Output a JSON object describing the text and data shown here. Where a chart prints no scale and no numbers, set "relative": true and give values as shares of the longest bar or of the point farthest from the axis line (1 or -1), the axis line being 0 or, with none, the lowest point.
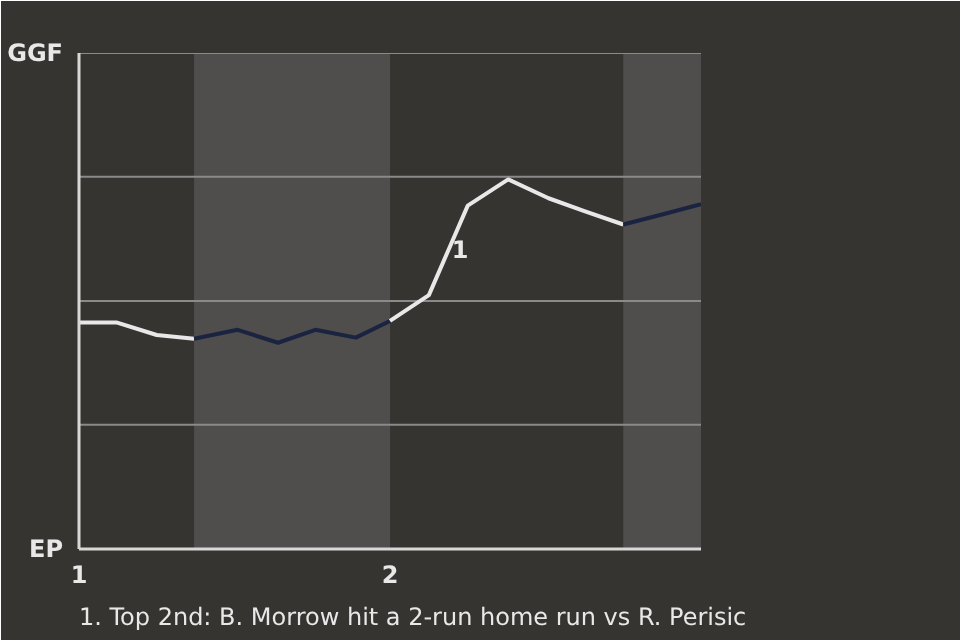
{
  "chart_data": {
    "type": "line",
    "relative": true,
    "xlim": [
      1,
      3
    ],
    "xticks": [
      1,
      2
    ],
    "marker": "none",
    "line_style": "solid",
    "ref_lines": [
      {
        "axis": "y",
        "value": 0.336,
        "label": null,
        "color": "#8a8a8a"
      },
      {
        "axis": "y",
        "value": 0.671,
        "label": null,
        "color": "#8a8a8a"
      },
      {
        "axis": "y",
        "value": 1.007,
        "label": null,
        "color": "#8a8a8a"
      },
      {
        "axis": "y",
        "value": 1.342,
        "label": null,
        "color": "#8a8a8a"
      }
    ],
    "series": [
      {
        "color": "#e8e8e8",
        "x": [
          1.0,
          1.12,
          1.25,
          1.37
        ],
        "values": [
          0.613,
          0.613,
          0.579,
          0.569
        ]
      },
      {
        "color": "#1a2340",
        "x": [
          1.37,
          1.51,
          1.64,
          1.76,
          1.89,
          2.0
        ],
        "values": [
          0.569,
          0.593,
          0.558,
          0.593,
          0.572,
          0.617
        ]
      },
      {
        "color": "#e8e8e8",
        "x": [
          2.0,
          2.125,
          2.25,
          2.38,
          2.51,
          2.625,
          2.75
        ],
        "values": [
          0.617,
          0.687,
          0.929,
          1.0,
          0.949,
          0.914,
          0.878
        ]
      },
      {
        "color": "#1a2340",
        "x": [
          2.75,
          2.875,
          3.0
        ],
        "values": [
          0.878,
          0.905,
          0.933
        ]
      }
    ],
    "bands": [
      {
        "axis": "x",
        "from": 1.37,
        "to": 2.0,
        "label": null,
        "color": "#4f4e4c"
      },
      {
        "axis": "x",
        "from": 2.75,
        "to": 3.0,
        "label": null,
        "color": "#4f4e4c"
      }
    ],
    "annotations": [
      "GGF",
      "EP",
      {
        "text": "1",
        "x": 2.25,
        "y": 0.929
      },
      "1. Top 2nd: B. Morrow hit a 2-run home run vs R. Perisic"
    ]
  }
}
